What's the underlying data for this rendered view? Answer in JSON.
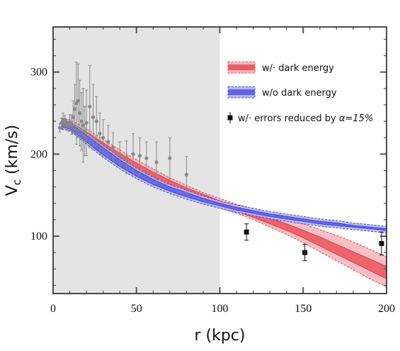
{
  "chart_data": {
    "type": "line",
    "xlabel": "r (kpc)",
    "ylabel_main": "V",
    "ylabel_sub": "c",
    "ylabel_unit": " (km/s)",
    "xlim": [
      0,
      200
    ],
    "ylim": [
      30,
      355
    ],
    "xticks": [
      0,
      50,
      100,
      150,
      200
    ],
    "yticks": [
      100,
      200,
      300
    ],
    "shaded_region": {
      "x_from": 0,
      "x_to": 100,
      "color": "#e4e4e4"
    },
    "legend": {
      "red_band": "w/· dark energy",
      "blue_band": "w/o dark energy",
      "square_points": "w/· errors reduced by ",
      "square_points_alpha": "α=15%"
    },
    "colors": {
      "red_band_light": "#f7b9bd",
      "red_band_dark": "#ec5a63",
      "red_line": "#e0303a",
      "blue_band_light": "#b4b6f5",
      "blue_band_dark": "#6264e6",
      "blue_line": "#3436c8",
      "gray_points": "#888888",
      "black_points": "#111111"
    },
    "series": [
      {
        "kind": "band",
        "x": [
          5,
          10,
          20,
          30,
          40,
          50,
          60,
          70,
          80,
          90,
          100,
          110,
          120,
          130,
          140,
          150,
          160,
          170,
          180,
          190,
          200
        ],
        "outer_lo": [
          230,
          229,
          213,
          199,
          186,
          175,
          165,
          156,
          148,
          141,
          134,
          128,
          120,
          111,
          102,
          92,
          81,
          70,
          59,
          48,
          38
        ],
        "outer_hi": [
          244,
          242,
          231,
          218,
          205,
          193,
          182,
          171,
          162,
          153,
          146,
          139,
          133,
          127,
          121,
          115,
          108,
          101,
          93,
          84,
          75
        ],
        "inner_lo": [
          233,
          231,
          217,
          203,
          190,
          178,
          168,
          159,
          151,
          143,
          137,
          130,
          123,
          115,
          107,
          98,
          88,
          78,
          68,
          58,
          48
        ],
        "inner_hi": [
          241,
          239,
          227,
          214,
          201,
          189,
          178,
          168,
          159,
          151,
          143,
          136,
          129,
          122,
          115,
          107,
          99,
          90,
          81,
          72,
          63
        ]
      },
      {
        "kind": "band",
        "x": [
          5,
          10,
          20,
          30,
          40,
          50,
          60,
          70,
          80,
          90,
          100,
          110,
          120,
          130,
          140,
          150,
          160,
          170,
          180,
          190,
          200
        ],
        "outer_lo": [
          231,
          229,
          212,
          196,
          182,
          170,
          160,
          152,
          145,
          139,
          134,
          129,
          125,
          121,
          118,
          115,
          112,
          110,
          108,
          106,
          104
        ],
        "outer_hi": [
          242,
          240,
          226,
          211,
          196,
          183,
          172,
          163,
          156,
          149,
          143,
          138,
          134,
          130,
          127,
          124,
          121,
          119,
          116,
          114,
          112
        ],
        "inner_lo": [
          233,
          231,
          215,
          199,
          185,
          173,
          163,
          155,
          148,
          142,
          137,
          132,
          128,
          124,
          121,
          118,
          115,
          113,
          111,
          109,
          107
        ],
        "inner_hi": [
          240,
          238,
          223,
          208,
          193,
          180,
          169,
          160,
          153,
          146,
          140,
          135,
          131,
          127,
          124,
          121,
          118,
          116,
          113,
          111,
          109
        ]
      },
      {
        "kind": "points_gray",
        "x": [
          4,
          5,
          6,
          7,
          8,
          9,
          10,
          11,
          12,
          13,
          14,
          15,
          16,
          17,
          18,
          19,
          20,
          22,
          24,
          26,
          28,
          30,
          33,
          36,
          40,
          44,
          48,
          52,
          56,
          62,
          70,
          80
        ],
        "y": [
          232,
          238,
          242,
          240,
          236,
          234,
          238,
          236,
          245,
          255,
          262,
          265,
          250,
          240,
          235,
          228,
          238,
          258,
          245,
          240,
          225,
          220,
          215,
          208,
          200,
          196,
          200,
          198,
          195,
          190,
          195,
          175
        ],
        "yerr": [
          5,
          6,
          8,
          7,
          6,
          6,
          10,
          12,
          20,
          30,
          50,
          45,
          40,
          35,
          45,
          30,
          40,
          50,
          40,
          30,
          25,
          22,
          20,
          18,
          15,
          20,
          25,
          22,
          20,
          25,
          25,
          22
        ]
      },
      {
        "kind": "points_black",
        "x": [
          116,
          151,
          197
        ],
        "y": [
          105,
          80,
          91
        ],
        "yerr": [
          10,
          10,
          14
        ]
      }
    ]
  }
}
